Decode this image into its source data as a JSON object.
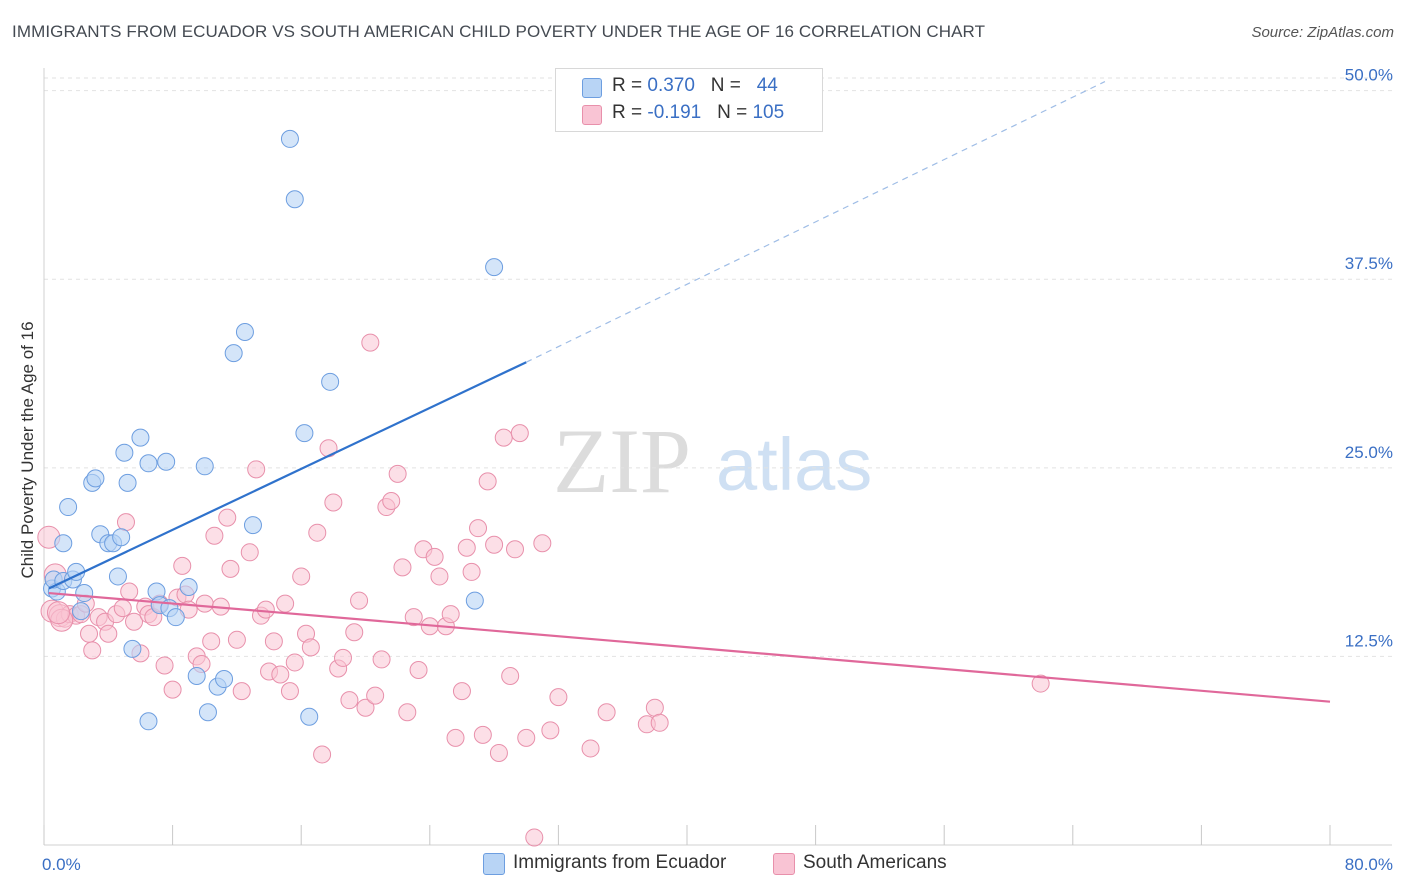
{
  "title": "IMMIGRANTS FROM ECUADOR VS SOUTH AMERICAN CHILD POVERTY UNDER THE AGE OF 16 CORRELATION CHART",
  "source": "Source: ZipAtlas.com",
  "watermark": {
    "zip": "ZIP",
    "atlas": "atlas"
  },
  "colors": {
    "blue_fill": "#b8d4f5",
    "blue_stroke": "#6d9ee0",
    "blue_line": "#2f72cc",
    "pink_fill": "#f9c4d4",
    "pink_stroke": "#e890ab",
    "pink_line": "#e0689a",
    "axis_label": "#3a6fc4",
    "grid": "#e2e2e2"
  },
  "legend": {
    "rows": [
      {
        "r_label": "R = ",
        "r_value": "0.370",
        "n_label": "N = ",
        "n_value": "44"
      },
      {
        "r_label": "R = ",
        "r_value": "-0.191",
        "n_label": "N = ",
        "n_value": "105"
      }
    ]
  },
  "bottom_legend": [
    "Immigrants from Ecuador",
    "South Americans"
  ],
  "chart_data": {
    "type": "scatter",
    "title": "IMMIGRANTS FROM ECUADOR VS SOUTH AMERICAN CHILD POVERTY UNDER THE AGE OF 16 CORRELATION CHART",
    "xlabel": "",
    "ylabel": "Child Poverty Under the Age of 16",
    "xlim": [
      0,
      80
    ],
    "ylim": [
      0,
      51.5
    ],
    "x_tick_labels": [
      "0.0%",
      "80.0%"
    ],
    "y_ticks": [
      12.5,
      25.0,
      37.5,
      50.0
    ],
    "y_tick_labels": [
      "12.5%",
      "25.0%",
      "37.5%",
      "50.0%"
    ],
    "grid": true,
    "legend_position": "top-center",
    "series": [
      {
        "name": "Immigrants from Ecuador",
        "r": 0.37,
        "n": 44,
        "trend": {
          "x": [
            0.3,
            30
          ],
          "y": [
            17.0,
            32.0
          ],
          "dashed_to": {
            "x": 66,
            "y": 50.6
          }
        },
        "points": [
          [
            0.5,
            17.0
          ],
          [
            0.8,
            16.8
          ],
          [
            0.6,
            17.6
          ],
          [
            1.2,
            17.5
          ],
          [
            1.2,
            20.0
          ],
          [
            1.5,
            22.4
          ],
          [
            1.8,
            17.6
          ],
          [
            2.0,
            18.1
          ],
          [
            2.5,
            16.7
          ],
          [
            2.3,
            15.5
          ],
          [
            3.0,
            24.0
          ],
          [
            3.2,
            24.3
          ],
          [
            3.5,
            20.6
          ],
          [
            4.0,
            20.0
          ],
          [
            4.3,
            20.0
          ],
          [
            4.8,
            20.4
          ],
          [
            4.6,
            17.8
          ],
          [
            5.2,
            24.0
          ],
          [
            5.0,
            26.0
          ],
          [
            5.5,
            13.0
          ],
          [
            6.0,
            27.0
          ],
          [
            6.5,
            25.3
          ],
          [
            7.0,
            16.8
          ],
          [
            7.2,
            15.9
          ],
          [
            7.6,
            25.4
          ],
          [
            7.8,
            15.7
          ],
          [
            8.2,
            15.1
          ],
          [
            9.0,
            17.1
          ],
          [
            9.5,
            11.2
          ],
          [
            10.0,
            25.1
          ],
          [
            10.2,
            8.8
          ],
          [
            10.8,
            10.5
          ],
          [
            11.8,
            32.6
          ],
          [
            12.5,
            34.0
          ],
          [
            13.0,
            21.2
          ],
          [
            15.3,
            46.8
          ],
          [
            15.6,
            42.8
          ],
          [
            16.2,
            27.3
          ],
          [
            16.5,
            8.5
          ],
          [
            17.8,
            30.7
          ],
          [
            28.0,
            38.3
          ],
          [
            26.8,
            16.2
          ],
          [
            11.2,
            11.0
          ],
          [
            6.5,
            8.2
          ]
        ]
      },
      {
        "name": "South Americans",
        "r": -0.191,
        "n": 105,
        "trend": {
          "x": [
            0.3,
            80
          ],
          "y": [
            16.7,
            9.5
          ]
        },
        "points": [
          [
            0.3,
            20.4
          ],
          [
            0.5,
            15.5
          ],
          [
            0.7,
            17.9
          ],
          [
            1.0,
            15.2
          ],
          [
            1.3,
            15.0
          ],
          [
            1.6,
            15.3
          ],
          [
            2.0,
            15.2
          ],
          [
            2.3,
            15.3
          ],
          [
            2.6,
            16.0
          ],
          [
            3.0,
            12.9
          ],
          [
            3.4,
            15.1
          ],
          [
            3.8,
            14.8
          ],
          [
            4.0,
            14.0
          ],
          [
            4.5,
            15.3
          ],
          [
            4.9,
            15.7
          ],
          [
            5.1,
            21.4
          ],
          [
            5.3,
            16.8
          ],
          [
            5.6,
            14.8
          ],
          [
            6.0,
            12.7
          ],
          [
            6.3,
            15.8
          ],
          [
            6.5,
            15.3
          ],
          [
            6.8,
            15.1
          ],
          [
            7.2,
            16.0
          ],
          [
            7.5,
            11.9
          ],
          [
            8.0,
            10.3
          ],
          [
            8.3,
            16.4
          ],
          [
            8.6,
            18.5
          ],
          [
            8.8,
            16.6
          ],
          [
            9.0,
            15.6
          ],
          [
            9.5,
            12.5
          ],
          [
            9.8,
            12.0
          ],
          [
            10.0,
            16.0
          ],
          [
            10.4,
            13.5
          ],
          [
            10.6,
            20.5
          ],
          [
            11.0,
            15.8
          ],
          [
            11.4,
            21.7
          ],
          [
            11.6,
            18.3
          ],
          [
            12.0,
            13.6
          ],
          [
            12.3,
            10.2
          ],
          [
            12.8,
            19.4
          ],
          [
            13.2,
            24.9
          ],
          [
            13.5,
            15.2
          ],
          [
            13.8,
            15.6
          ],
          [
            14.0,
            11.5
          ],
          [
            14.3,
            13.5
          ],
          [
            14.7,
            11.3
          ],
          [
            15.0,
            16.0
          ],
          [
            15.3,
            10.2
          ],
          [
            15.6,
            12.1
          ],
          [
            16.0,
            17.8
          ],
          [
            16.3,
            14.0
          ],
          [
            16.6,
            13.1
          ],
          [
            17.0,
            20.7
          ],
          [
            17.3,
            6.0
          ],
          [
            17.7,
            26.3
          ],
          [
            18.0,
            22.7
          ],
          [
            18.3,
            11.7
          ],
          [
            18.6,
            12.4
          ],
          [
            19.0,
            9.6
          ],
          [
            19.3,
            14.1
          ],
          [
            19.6,
            16.2
          ],
          [
            20.0,
            9.1
          ],
          [
            20.3,
            33.3
          ],
          [
            20.6,
            9.9
          ],
          [
            21.0,
            12.3
          ],
          [
            21.3,
            22.4
          ],
          [
            21.6,
            22.8
          ],
          [
            22.0,
            24.6
          ],
          [
            22.3,
            18.4
          ],
          [
            22.6,
            8.8
          ],
          [
            23.0,
            15.1
          ],
          [
            23.3,
            11.6
          ],
          [
            23.6,
            19.6
          ],
          [
            24.0,
            14.5
          ],
          [
            24.3,
            19.1
          ],
          [
            24.6,
            17.8
          ],
          [
            25.0,
            14.5
          ],
          [
            25.3,
            15.3
          ],
          [
            25.6,
            7.1
          ],
          [
            26.0,
            10.2
          ],
          [
            26.3,
            19.7
          ],
          [
            26.6,
            18.1
          ],
          [
            27.0,
            21.0
          ],
          [
            27.3,
            7.3
          ],
          [
            27.6,
            24.1
          ],
          [
            28.0,
            19.9
          ],
          [
            28.3,
            6.1
          ],
          [
            28.6,
            27.0
          ],
          [
            29.0,
            11.2
          ],
          [
            29.3,
            19.6
          ],
          [
            29.6,
            27.3
          ],
          [
            30.0,
            7.1
          ],
          [
            31.0,
            20.0
          ],
          [
            31.5,
            7.6
          ],
          [
            32.0,
            9.8
          ],
          [
            34.0,
            6.4
          ],
          [
            35.0,
            8.8
          ],
          [
            37.5,
            8.0
          ],
          [
            38.0,
            9.1
          ],
          [
            38.3,
            8.1
          ],
          [
            30.5,
            0.5
          ],
          [
            62.0,
            10.7
          ],
          [
            1.1,
            14.9
          ],
          [
            0.9,
            15.4
          ],
          [
            2.8,
            14.0
          ]
        ]
      }
    ]
  }
}
